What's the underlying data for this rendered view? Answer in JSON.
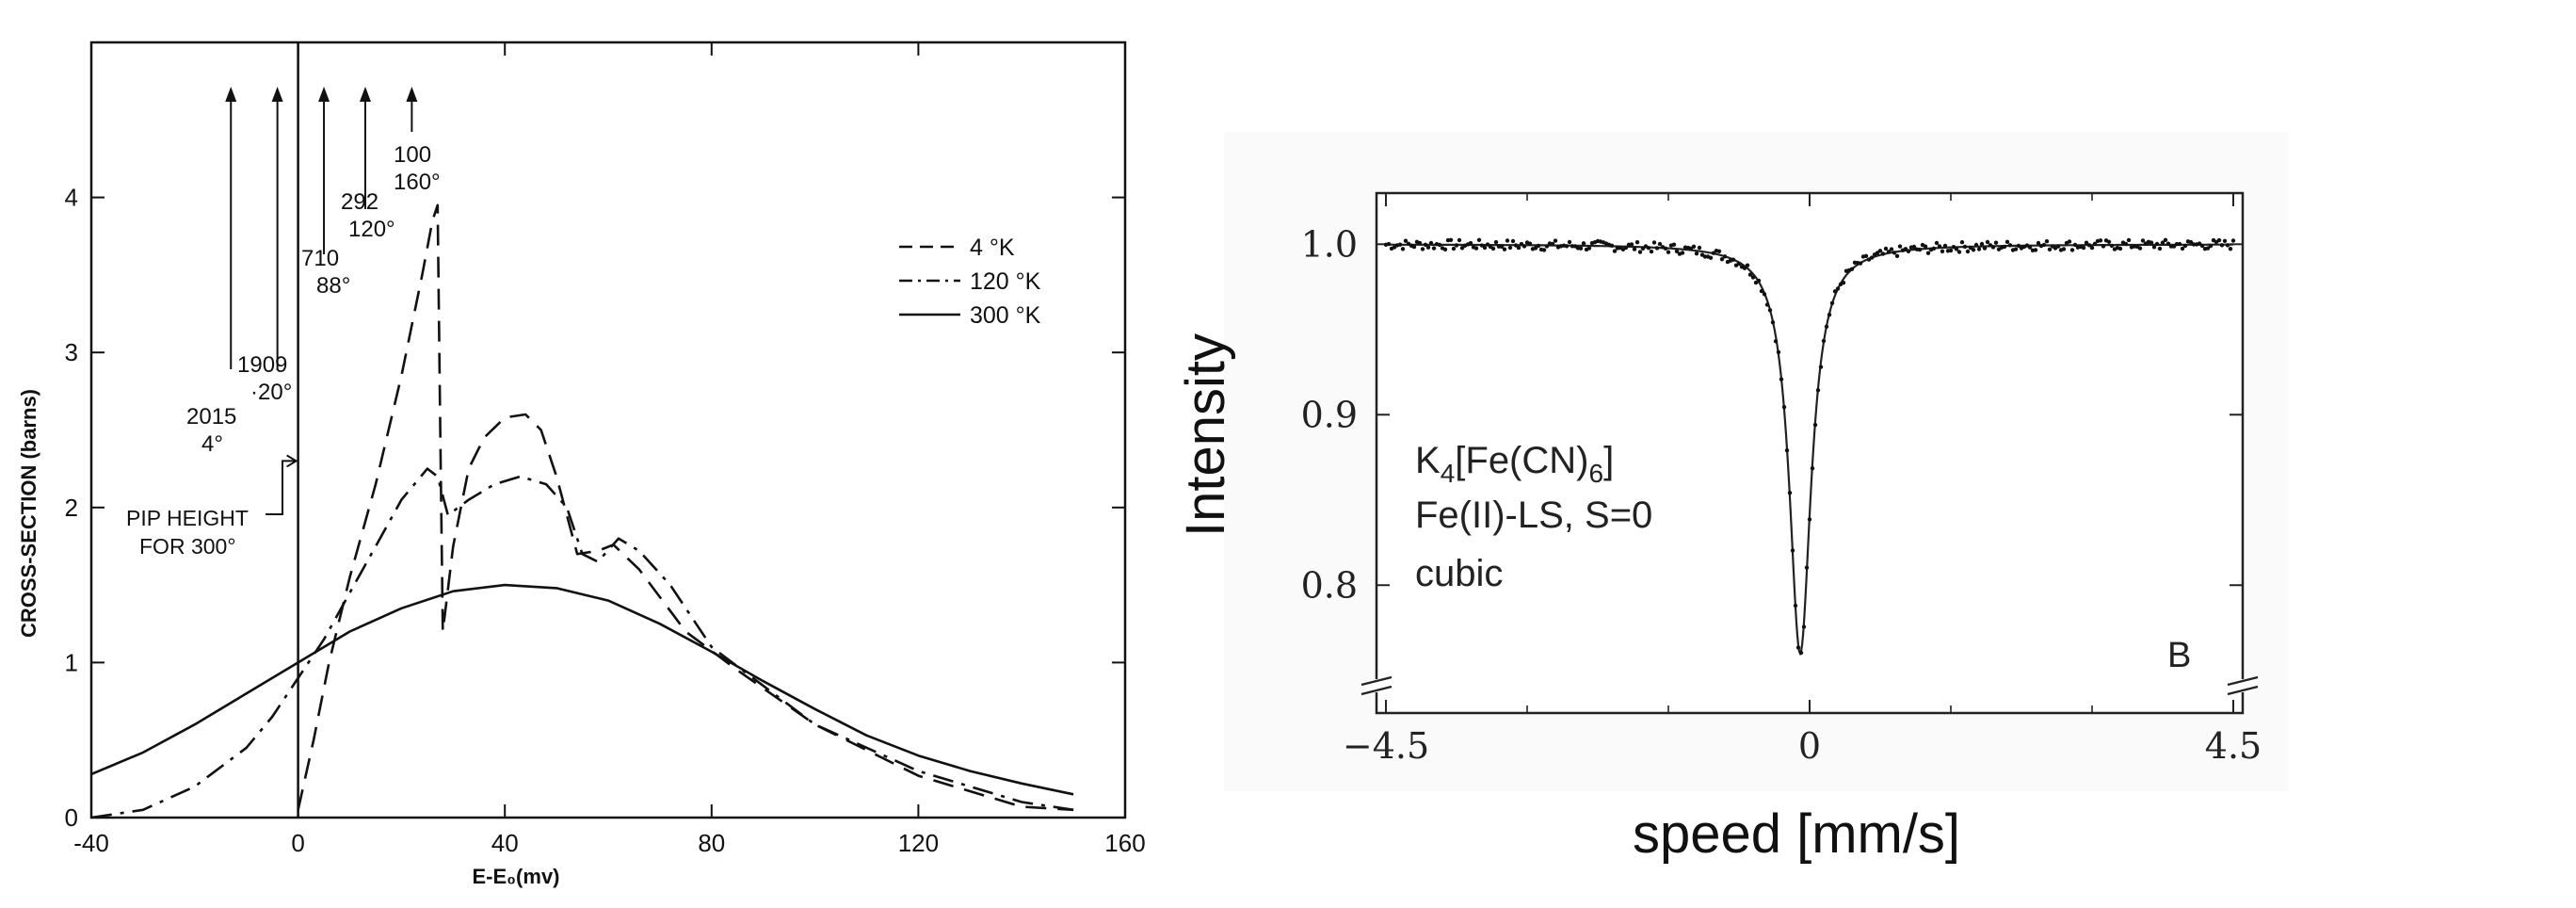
{
  "chart_data": [
    {
      "type": "line",
      "title": "",
      "xlabel": "E-E₀(mv)",
      "ylabel": "CROSS-SECTION (barns)",
      "xlim": [
        -40,
        160
      ],
      "ylim": [
        0,
        5
      ],
      "x_ticks": [
        "-40",
        "0",
        "40",
        "80",
        "120",
        "160"
      ],
      "y_ticks": [
        "0",
        "1",
        "2",
        "3",
        "4"
      ],
      "grid": false,
      "legend_position": "top-right",
      "series": [
        {
          "name": "4 °K",
          "dash": "dashed",
          "x": [
            0,
            3,
            6,
            10,
            15,
            20,
            24,
            26,
            27,
            27.5,
            28,
            30,
            33,
            36,
            40,
            44,
            47,
            50,
            54,
            58,
            61,
            66,
            75,
            85,
            100,
            120,
            140,
            150
          ],
          "y": [
            0.05,
            0.5,
            1.0,
            1.55,
            2.15,
            2.85,
            3.5,
            3.85,
            3.95,
            2.5,
            1.2,
            1.75,
            2.25,
            2.45,
            2.58,
            2.6,
            2.5,
            2.2,
            1.7,
            1.72,
            1.76,
            1.6,
            1.2,
            0.95,
            0.6,
            0.27,
            0.07,
            0.05
          ]
        },
        {
          "name": "120 °K",
          "dash": "dash-dot",
          "x": [
            -40,
            -30,
            -20,
            -10,
            -5,
            0,
            5,
            10,
            15,
            20,
            25,
            27,
            29,
            33,
            38,
            43,
            48,
            52,
            55,
            58,
            62,
            66,
            72,
            80,
            90,
            100,
            120,
            140,
            150
          ],
          "y": [
            0,
            0.05,
            0.2,
            0.45,
            0.65,
            0.9,
            1.15,
            1.45,
            1.75,
            2.05,
            2.25,
            2.2,
            1.95,
            2.05,
            2.15,
            2.2,
            2.15,
            2.0,
            1.7,
            1.65,
            1.8,
            1.72,
            1.5,
            1.1,
            0.85,
            0.6,
            0.3,
            0.1,
            0.05
          ]
        },
        {
          "name": "300 °K",
          "dash": "solid",
          "x": [
            -40,
            -30,
            -20,
            -10,
            0,
            10,
            20,
            30,
            40,
            50,
            60,
            70,
            80,
            90,
            100,
            110,
            120,
            130,
            140,
            150
          ],
          "y": [
            0.28,
            0.42,
            0.6,
            0.8,
            1.0,
            1.2,
            1.35,
            1.46,
            1.5,
            1.48,
            1.4,
            1.25,
            1.07,
            0.88,
            0.7,
            0.53,
            0.4,
            0.3,
            0.22,
            0.15
          ]
        }
      ],
      "resonance_lines": [
        {
          "x": -13,
          "label": [
            "2015",
            "4°"
          ]
        },
        {
          "x": -4,
          "label": [
            "1909",
            "·20°"
          ]
        },
        {
          "x": 5,
          "label": [
            "710",
            "88°"
          ]
        },
        {
          "x": 13,
          "label": [
            "292",
            "120°"
          ]
        },
        {
          "x": 22,
          "label": [
            "100",
            "160°"
          ]
        }
      ],
      "vertical_line_x": 0,
      "annotation": [
        "PIP HEIGHT",
        "FOR 300°"
      ],
      "annotation_value": 2.3
    },
    {
      "type": "line",
      "title": "",
      "xlabel": "speed [mm/s]",
      "ylabel": "Intensity",
      "xlim": [
        -4.6,
        4.6
      ],
      "ylim": [
        0.725,
        1.03
      ],
      "x_ticks": [
        "−4.5",
        "0",
        "4.5"
      ],
      "y_ticks": [
        "1.0",
        "0.9",
        "0.8"
      ],
      "grid": false,
      "series": [
        {
          "name": "K4[Fe(CN)6]",
          "model": "lorentzian",
          "center": -0.1,
          "hwhm": 0.14,
          "baseline": 1.0,
          "depth": 0.24,
          "x_range": [
            -4.5,
            4.5
          ]
        }
      ],
      "annotation": [
        "K",
        "4",
        "[Fe(CN)",
        "6",
        "]",
        "Fe(II)-LS, S=0",
        "cubic"
      ],
      "panel_label": "B"
    }
  ]
}
